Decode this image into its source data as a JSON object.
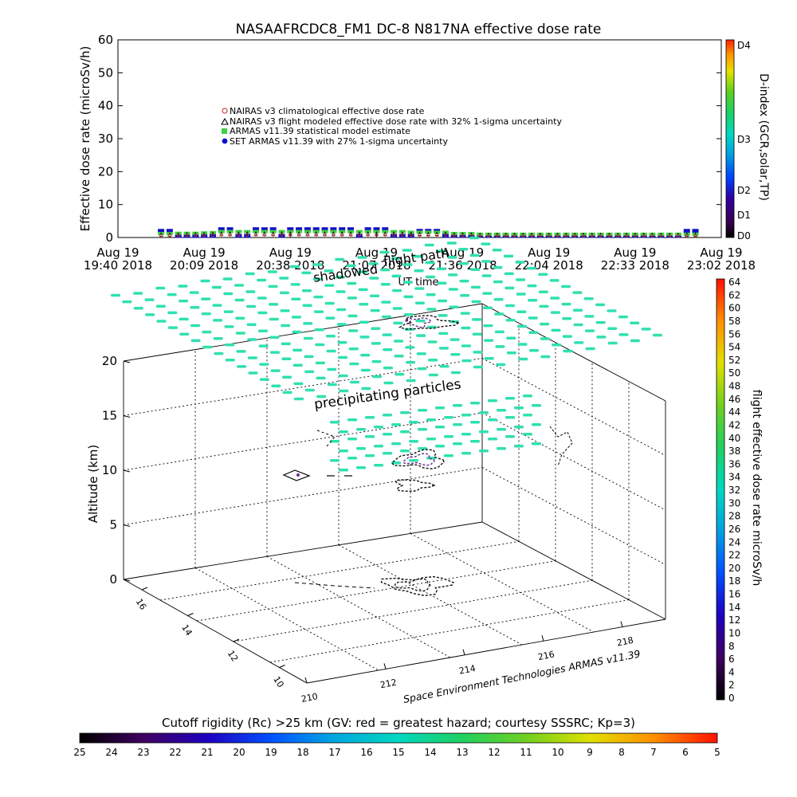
{
  "chart_data": [
    {
      "type": "scatter",
      "title": "NASAAFRCDC8_FM1 DC-8    N817NA effective dose rate",
      "ylabel": "Effective dose rate (microSv/h)",
      "xlabel": "UT time",
      "ylim": [
        0,
        60
      ],
      "yticks": [
        "0",
        "10",
        "20",
        "30",
        "40",
        "50",
        "60"
      ],
      "xticks": [
        {
          "top": "Aug 19",
          "bottom": "19:40 2018"
        },
        {
          "top": "Aug 19",
          "bottom": "20:09 2018"
        },
        {
          "top": "Aug 19",
          "bottom": "20:38 2018"
        },
        {
          "top": "Aug 19",
          "bottom": "21:07 2018"
        },
        {
          "top": "Aug 19",
          "bottom": "21:36 2018"
        },
        {
          "top": "Aug 19",
          "bottom": "22:04 2018"
        },
        {
          "top": "Aug 19",
          "bottom": "22:33 2018"
        },
        {
          "top": "Aug 19",
          "bottom": "23:02 2018"
        }
      ],
      "legend": [
        {
          "label": "NAIRAS v3 climatological effective dose rate",
          "color": "#d04040",
          "marker": "circle"
        },
        {
          "label": "NAIRAS v3 flight modeled effective dose rate with 32% 1-sigma uncertainty",
          "color": "#000000",
          "marker": "triangle"
        },
        {
          "label": "ARMAS v11.39 statistical model estimate",
          "color": "#40d040",
          "marker": "square"
        },
        {
          "label": "SET ARMAS v11.39 with 27% 1-sigma uncertainty",
          "color": "#1010d0",
          "marker": "circle"
        }
      ],
      "legend_position": "upper-left",
      "series": [
        {
          "name": "SET ARMAS v11.39 with 27% 1-sigma uncertainty",
          "color": "#1010c8",
          "x": [
            0.5,
            0.6,
            0.7,
            0.8,
            0.9,
            1.0,
            1.1,
            1.2,
            1.3,
            1.4,
            1.5,
            1.6,
            1.7,
            1.8,
            1.9,
            2.0,
            2.1,
            2.2,
            2.3,
            2.4,
            2.5,
            2.6,
            2.7,
            2.8,
            2.9,
            3.0,
            3.1,
            3.2,
            3.3,
            3.4,
            3.5,
            3.6,
            3.7,
            3.8,
            3.9,
            4.0,
            4.1,
            4.2,
            4.3,
            4.4,
            4.5,
            4.6,
            4.7,
            4.8,
            4.9,
            5.0,
            5.1,
            5.2,
            5.3,
            5.4,
            5.5,
            5.6,
            5.7,
            5.8,
            5.9,
            6.0,
            6.1,
            6.2,
            6.3,
            6.4,
            6.5,
            6.6,
            6.7
          ],
          "y": [
            2.0,
            2.0,
            0.5,
            0.5,
            0.5,
            0.5,
            0.5,
            2.5,
            2.5,
            0.5,
            0.5,
            2.5,
            2.5,
            2.5,
            0.5,
            2.5,
            2.5,
            2.5,
            2.5,
            2.5,
            2.5,
            2.5,
            2.5,
            0.5,
            2.5,
            2.5,
            2.5,
            0.5,
            0.5,
            0.5,
            2.0,
            2.0,
            2.0,
            0.5,
            0.5,
            0.5,
            0.5,
            0.5,
            0.5,
            0.5,
            0.5,
            0.5,
            0.5,
            0.5,
            0.5,
            0.5,
            0.5,
            0.5,
            0.5,
            0.5,
            0.5,
            0.5,
            0.5,
            0.5,
            0.5,
            0.5,
            0.5,
            0.5,
            0.5,
            0.5,
            0.5,
            2.0,
            2.0
          ]
        },
        {
          "name": "ARMAS v11.39 statistical model estimate",
          "color": "#40d040",
          "x": [
            0.5,
            0.6,
            0.7,
            0.8,
            0.9,
            1.0,
            1.1,
            1.2,
            1.3,
            1.4,
            1.5,
            1.6,
            1.7,
            1.8,
            1.9,
            2.0,
            2.1,
            2.2,
            2.3,
            2.4,
            2.5,
            2.6,
            2.7,
            2.8,
            2.9,
            3.0,
            3.1,
            3.2,
            3.3,
            3.4,
            3.5,
            3.6,
            3.7,
            3.8,
            3.9,
            4.0,
            4.1,
            4.2,
            4.3,
            4.4,
            4.5,
            4.6,
            4.7,
            4.8,
            4.9,
            5.0,
            5.1,
            5.2,
            5.3,
            5.4,
            5.5,
            5.6,
            5.7,
            5.8,
            5.9,
            6.0,
            6.1,
            6.2,
            6.3,
            6.4,
            6.5,
            6.6,
            6.7
          ],
          "y": [
            1.2,
            1.2,
            1.3,
            1.3,
            1.3,
            1.4,
            1.5,
            1.8,
            1.8,
            1.8,
            1.8,
            1.8,
            1.8,
            1.8,
            1.8,
            1.8,
            1.8,
            1.8,
            1.8,
            1.8,
            1.8,
            1.8,
            1.8,
            1.8,
            1.8,
            1.8,
            1.8,
            1.8,
            1.8,
            1.6,
            1.6,
            1.6,
            1.6,
            1.6,
            1.2,
            1.2,
            1.2,
            1.0,
            1.0,
            1.0,
            1.0,
            1.0,
            1.0,
            1.0,
            1.0,
            1.0,
            1.0,
            1.0,
            1.0,
            1.0,
            1.0,
            1.0,
            1.0,
            1.0,
            1.0,
            1.0,
            1.0,
            1.0,
            1.0,
            1.0,
            1.0,
            1.0,
            1.0
          ]
        },
        {
          "name": "NAIRAS v3 flight modeled effective dose rate with 32% 1-sigma uncertainty",
          "color": "#000000",
          "x": [
            0.5,
            0.6,
            0.7,
            0.8,
            0.9,
            1.0,
            1.1,
            1.2,
            1.3,
            1.4,
            1.5,
            1.6,
            1.7,
            1.8,
            1.9,
            2.0,
            2.1,
            2.2,
            2.3,
            2.4,
            2.5,
            2.6,
            2.7,
            2.8,
            2.9,
            3.0,
            3.1,
            3.2,
            3.3,
            3.4,
            3.5,
            3.6,
            3.7,
            3.8,
            3.9,
            4.0,
            4.1,
            4.2,
            4.3,
            4.4,
            4.5,
            4.6,
            4.7,
            4.8,
            4.9,
            5.0,
            5.1,
            5.2,
            5.3,
            5.4,
            5.5,
            5.6,
            5.7,
            5.8,
            5.9,
            6.0,
            6.1,
            6.2,
            6.3,
            6.4,
            6.5,
            6.6,
            6.7
          ],
          "y": [
            0.9,
            0.9,
            0.9,
            1.0,
            1.0,
            1.0,
            1.1,
            1.2,
            1.2,
            1.2,
            1.2,
            1.2,
            1.2,
            1.2,
            1.2,
            1.2,
            1.2,
            1.2,
            1.2,
            1.2,
            1.2,
            1.2,
            1.2,
            1.2,
            1.2,
            1.2,
            1.2,
            1.2,
            1.2,
            1.1,
            1.1,
            1.1,
            1.1,
            1.1,
            0.9,
            0.9,
            0.9,
            0.8,
            0.8,
            0.8,
            0.8,
            0.8,
            0.8,
            0.8,
            0.8,
            0.8,
            0.8,
            0.8,
            0.8,
            0.8,
            0.8,
            0.8,
            0.8,
            0.8,
            0.8,
            0.8,
            0.8,
            0.8,
            0.8,
            0.8,
            0.8,
            0.8,
            0.8
          ]
        },
        {
          "name": "NAIRAS v3 climatological effective dose rate",
          "color": "#d04040",
          "x": [
            0.5,
            0.6,
            0.7,
            0.8,
            0.9,
            1.0,
            1.1,
            1.2,
            1.3,
            1.4,
            1.5,
            1.6,
            1.7,
            1.8,
            1.9,
            2.0,
            2.1,
            2.2,
            2.3,
            2.4,
            2.5,
            2.6,
            2.7,
            2.8,
            2.9,
            3.0,
            3.1,
            3.2,
            3.3,
            3.4,
            3.5,
            3.6,
            3.7,
            3.8,
            3.9,
            4.0,
            4.1,
            4.2,
            4.3,
            4.4,
            4.5,
            4.6,
            4.7,
            4.8,
            4.9,
            5.0,
            5.1,
            5.2,
            5.3,
            5.4,
            5.5,
            5.6,
            5.7,
            5.8,
            5.9,
            6.0,
            6.1,
            6.2,
            6.3,
            6.4,
            6.5,
            6.6,
            6.7
          ],
          "y": [
            0.6,
            0.6,
            0.6,
            0.7,
            0.7,
            0.7,
            0.7,
            0.8,
            0.8,
            0.8,
            0.8,
            0.8,
            0.8,
            0.8,
            0.8,
            0.8,
            0.8,
            0.8,
            0.8,
            0.8,
            0.8,
            0.8,
            0.8,
            0.8,
            0.8,
            0.8,
            0.8,
            0.8,
            0.8,
            0.7,
            0.7,
            0.7,
            0.7,
            0.7,
            0.6,
            0.6,
            0.6,
            0.5,
            0.5,
            0.5,
            0.5,
            0.5,
            0.5,
            0.5,
            0.5,
            0.5,
            0.5,
            0.5,
            0.5,
            0.5,
            0.5,
            0.5,
            0.5,
            0.5,
            0.5,
            0.5,
            0.5,
            0.5,
            0.5,
            0.5,
            0.5,
            0.5,
            0.5
          ]
        }
      ],
      "d_index_colorbar": {
        "title": "D-index (GCR,solar,TP)",
        "labels": [
          "D0",
          "D1",
          "D2",
          "D3",
          "D4"
        ]
      }
    },
    {
      "type": "scatter-3d",
      "zlabel": "Altitude (km)",
      "zticks": [
        "0",
        "5",
        "10",
        "15",
        "20"
      ],
      "zlim": [
        0,
        20
      ],
      "left_axis_ticks": [
        "16",
        "14",
        "12",
        "10"
      ],
      "bottom_axis_ticks": [
        "210",
        "212",
        "214",
        "216",
        "218"
      ],
      "annotations": [
        {
          "text": "flight path"
        },
        {
          "text": "shadowed"
        },
        {
          "text": "precipitating particles"
        }
      ],
      "credit": "Space Environment Technologies ARMAS v11.39",
      "rigidity_layer": {
        "altitude_km": 25,
        "value_color": "#30e0b0"
      },
      "dose_colorbar": {
        "title": "flight effective dose rate microSv/h",
        "labels": [
          "0",
          "2",
          "4",
          "6",
          "8",
          "10",
          "12",
          "14",
          "16",
          "18",
          "20",
          "22",
          "24",
          "26",
          "28",
          "30",
          "32",
          "34",
          "36",
          "38",
          "40",
          "42",
          "44",
          "46",
          "48",
          "50",
          "52",
          "54",
          "56",
          "58",
          "60",
          "62",
          "64"
        ]
      },
      "rigidity_colorbar": {
        "title": "Cutoff rigidity (Rc) >25 km (GV: red = greatest hazard; courtesy SSSRC; Kp=3)",
        "labels": [
          "25",
          "24",
          "23",
          "22",
          "21",
          "20",
          "19",
          "18",
          "17",
          "16",
          "15",
          "14",
          "13",
          "12",
          "11",
          "10",
          "9",
          "8",
          "7",
          "6",
          "5"
        ]
      }
    }
  ]
}
